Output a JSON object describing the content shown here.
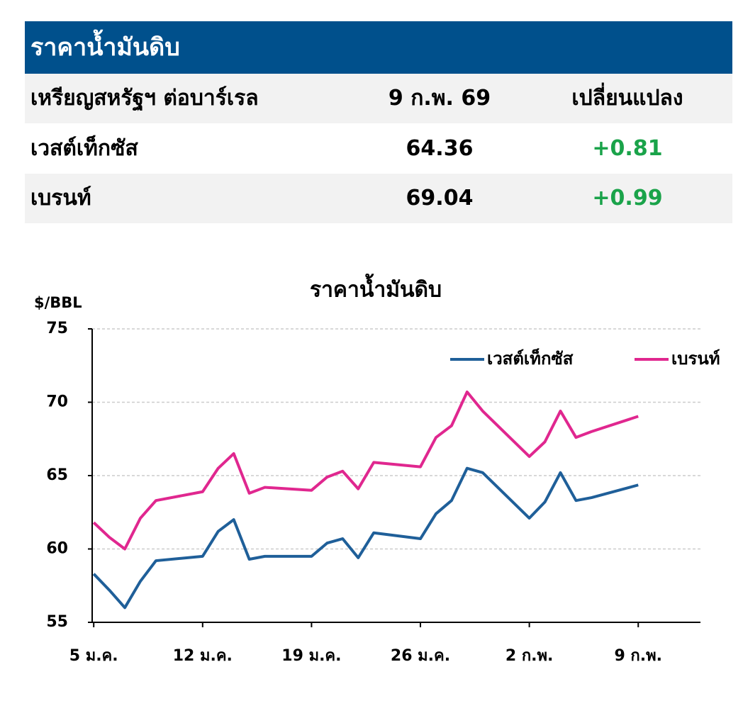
{
  "header": {
    "title": "ราคาน้ำมันดิบ"
  },
  "table": {
    "header": [
      "เหรียญสหรัฐฯ ต่อบาร์เรล",
      "9 ก.พ. 69",
      "เปลี่ยนแปลง"
    ],
    "rows": [
      [
        "เวสต์เท็กซัส",
        64.36,
        "+0.81"
      ],
      [
        "เบรนท์",
        69.04,
        "+0.99"
      ]
    ]
  },
  "chart_data": {
    "type": "line",
    "title": "ราคาน้ำมันดิบ",
    "y_label": "$/BBL",
    "x": [
      0,
      1,
      2,
      3,
      4,
      7,
      8,
      9,
      10,
      11,
      14,
      15,
      16,
      17,
      18,
      21,
      22,
      23,
      24,
      25,
      28,
      29,
      30,
      31,
      32,
      35
    ],
    "xlim": [
      -0.1,
      39
    ],
    "xticks": [
      {
        "value": 0,
        "label": "5 ม.ค."
      },
      {
        "value": 7,
        "label": "12 ม.ค."
      },
      {
        "value": 14,
        "label": "19 ม.ค."
      },
      {
        "value": 21,
        "label": "26 ม.ค."
      },
      {
        "value": 28,
        "label": "2 ก.พ."
      },
      {
        "value": 35,
        "label": "9 ก.พ."
      }
    ],
    "ylim": [
      55,
      75
    ],
    "yticks": [
      55,
      60,
      65,
      70,
      75
    ],
    "grid": true,
    "legend": "top right",
    "series": [
      {
        "name": "เวสต์เท็กซัส",
        "color": "#1f5f99",
        "values": [
          58.3,
          57.2,
          56.0,
          57.8,
          59.2,
          59.5,
          61.2,
          62.0,
          59.3,
          59.5,
          59.5,
          60.4,
          60.7,
          59.4,
          61.1,
          60.7,
          62.4,
          63.3,
          65.5,
          65.2,
          62.1,
          63.2,
          65.2,
          63.3,
          63.5,
          64.36
        ]
      },
      {
        "name": "เบรนท์",
        "color": "#e0278f",
        "values": [
          61.8,
          60.8,
          60.0,
          62.1,
          63.3,
          63.9,
          65.5,
          66.5,
          63.8,
          64.2,
          64.0,
          64.9,
          65.3,
          64.1,
          65.9,
          65.6,
          67.6,
          68.4,
          70.7,
          69.4,
          66.3,
          67.3,
          69.4,
          67.6,
          68.0,
          69.04
        ]
      }
    ]
  }
}
